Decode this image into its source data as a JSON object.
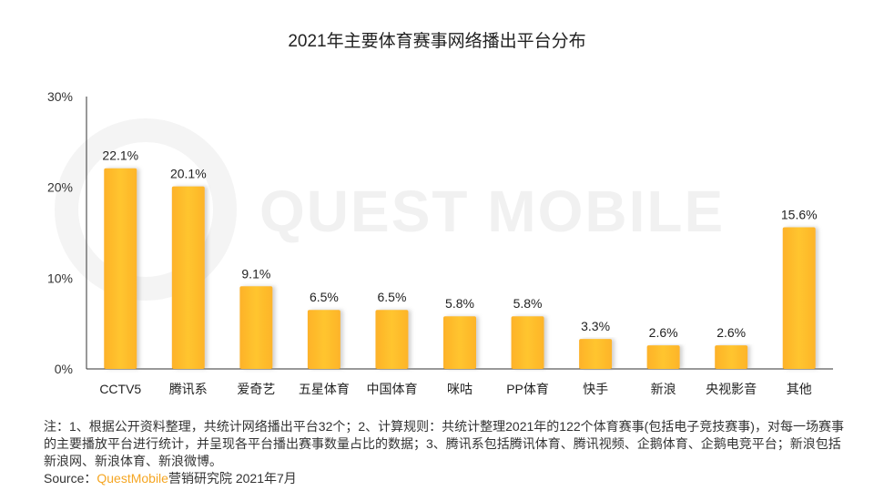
{
  "watermark": "QUEST MOBILE",
  "chart_data": {
    "type": "bar",
    "title": "2021年主要体育赛事网络播出平台分布",
    "categories": [
      "CCTV5",
      "腾讯系",
      "爱奇艺",
      "五星体育",
      "中国体育",
      "咪咕",
      "PP体育",
      "快手",
      "新浪",
      "央视影音",
      "其他"
    ],
    "values": [
      22.1,
      20.1,
      9.1,
      6.5,
      6.5,
      5.8,
      5.8,
      3.3,
      2.6,
      2.6,
      15.6
    ],
    "data_labels": [
      "22.1%",
      "20.1%",
      "9.1%",
      "6.5%",
      "6.5%",
      "5.8%",
      "5.8%",
      "3.3%",
      "2.6%",
      "2.6%",
      "15.6%"
    ],
    "ylim": [
      0,
      30
    ],
    "yticks": [
      0,
      10,
      20,
      30
    ],
    "ytick_labels": [
      "0%",
      "10%",
      "20%",
      "30%"
    ],
    "xlabel": "",
    "ylabel": "",
    "grid": false,
    "bar_color": "#FDB92A"
  },
  "notes": {
    "text": "注：1、根据公开资料整理，共统计网络播出平台32个；2、计算规则：共统计整理2021年的122个体育赛事(包括电子竞技赛事)，对每一场赛事的主要播放平台进行统计，并呈现各平台播出赛事数量占比的数据；3、腾讯系包括腾讯体育、腾讯视频、企鹅体育、企鹅电竞平台；新浪包括新浪网、新浪体育、新浪微博。",
    "source_prefix": "Source：",
    "source_brand": "QuestMobile",
    "source_suffix": "营销研究院 2021年7月"
  }
}
